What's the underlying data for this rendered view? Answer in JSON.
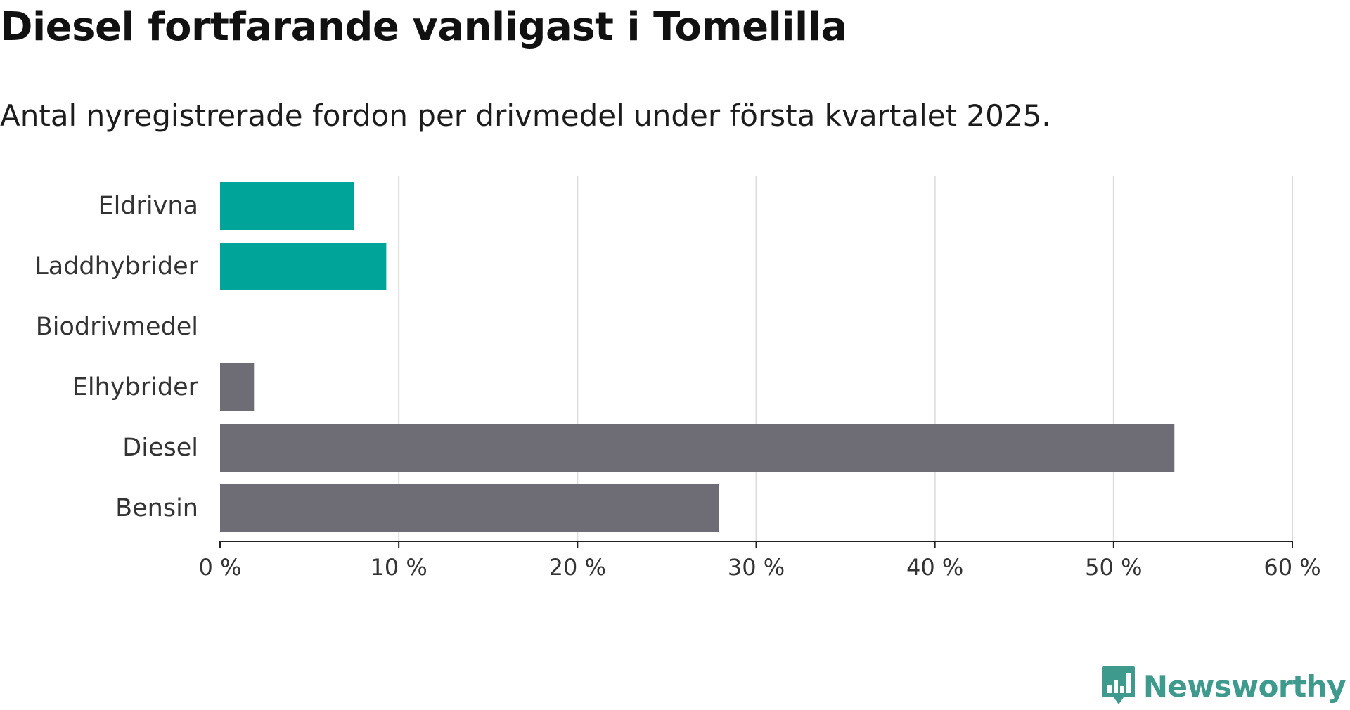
{
  "header": {
    "title": "Diesel fortfarande vanligast i Tomelilla",
    "subtitle": "Antal nyregistrerade fordon per drivmedel under första kvartalet 2025."
  },
  "brand": {
    "name": "Newsworthy",
    "icon": "bar-chart-speech-bubble-icon",
    "color": "#3e9a8d"
  },
  "chart_data": {
    "type": "bar",
    "orientation": "horizontal",
    "title": "Diesel fortfarande vanligast i Tomelilla",
    "subtitle": "Antal nyregistrerade fordon per drivmedel under första kvartalet 2025.",
    "categories": [
      "Eldrivna",
      "Laddhybrider",
      "Biodrivmedel",
      "Elhybrider",
      "Diesel",
      "Bensin"
    ],
    "values": [
      7.5,
      9.3,
      0,
      1.9,
      53.4,
      27.9
    ],
    "unit": "%",
    "colors": [
      "#00a499",
      "#00a499",
      "#6e6d76",
      "#6e6d76",
      "#6e6d76",
      "#6e6d76"
    ],
    "xlim": [
      0,
      60
    ],
    "xticks": [
      0,
      10,
      20,
      30,
      40,
      50,
      60
    ],
    "xtick_labels": [
      "0 %",
      "10 %",
      "20 %",
      "30 %",
      "40 %",
      "50 %",
      "60 %"
    ],
    "xlabel": "",
    "ylabel": "",
    "grid": "vertical",
    "legend": "none"
  }
}
